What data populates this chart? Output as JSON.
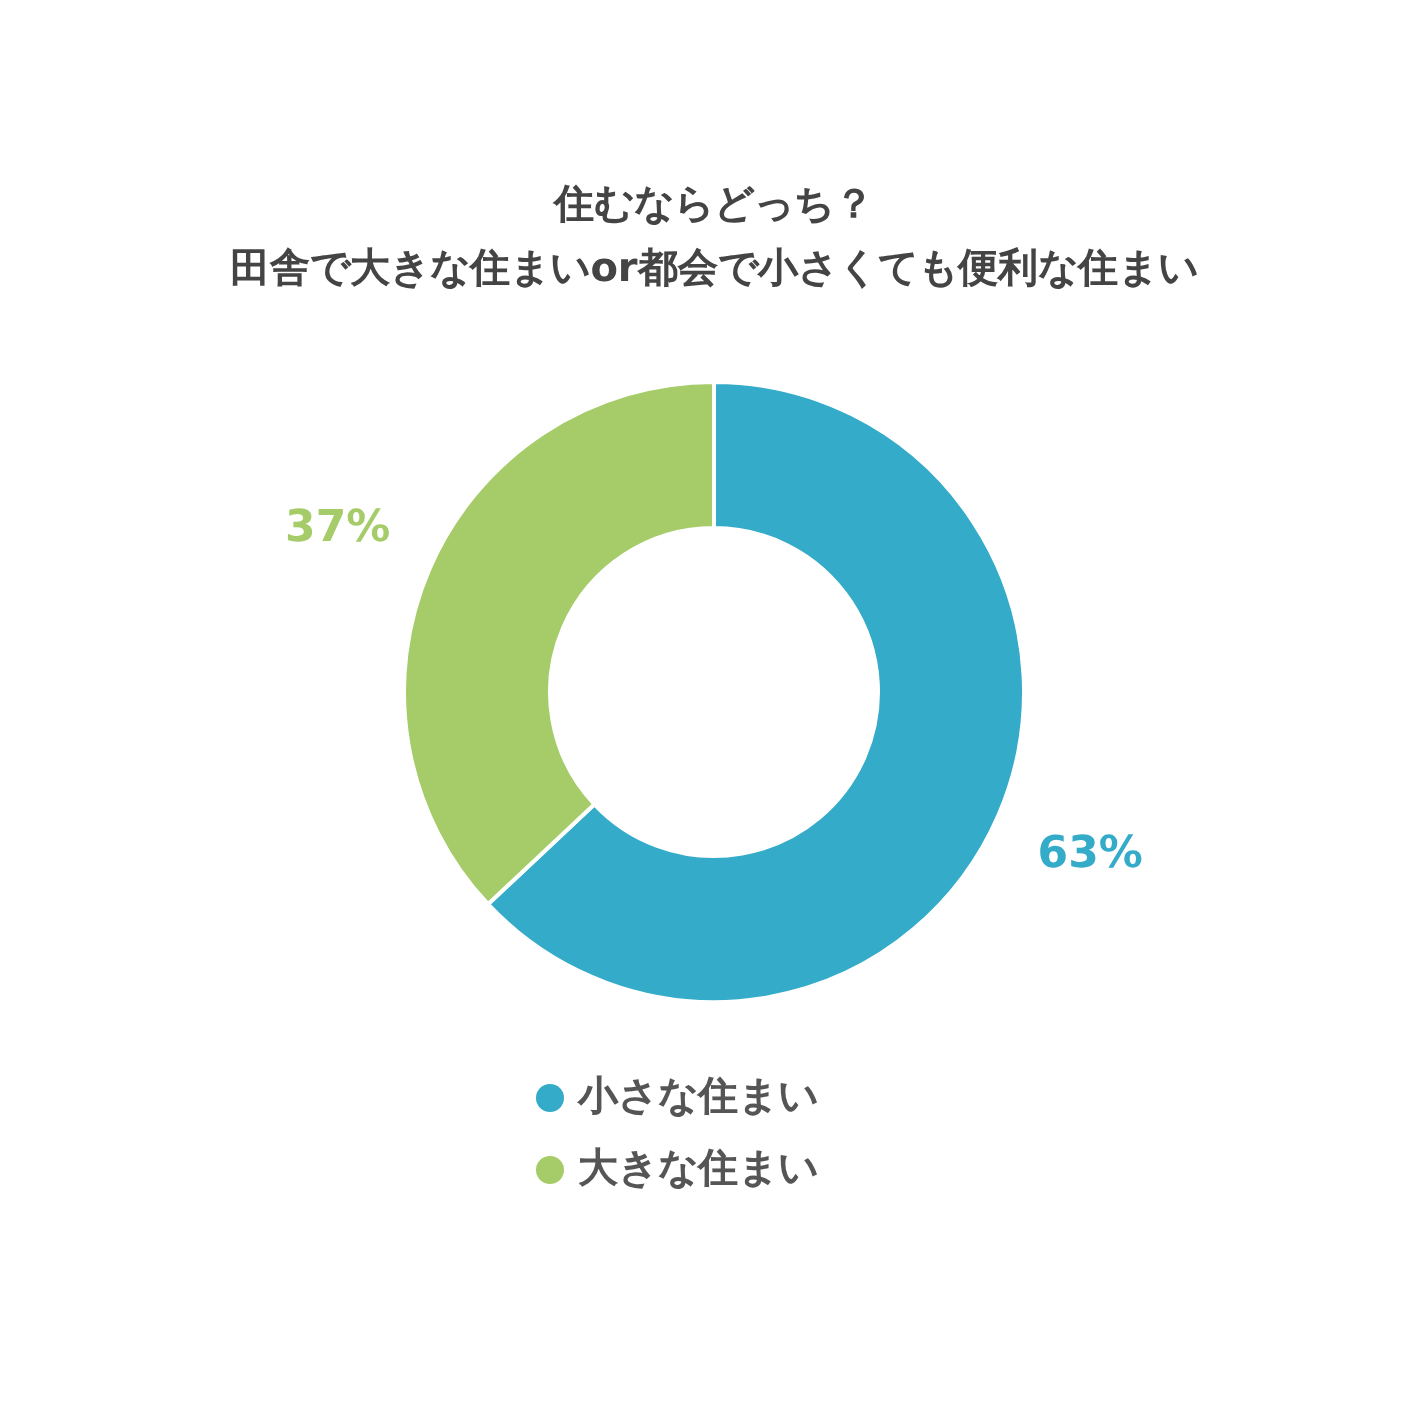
{
  "chart_data": {
    "type": "donut",
    "title": "住むならどっち？",
    "subtitle": "田舎で大きな住まいor都会で小さくても便利な住まい",
    "categories": [
      "小さな住まい",
      "大きな住まい"
    ],
    "values": [
      63,
      37
    ],
    "colors": [
      "#34abc8",
      "#a5cc69"
    ],
    "value_labels": [
      "63%",
      "37%"
    ],
    "legend": "bottom"
  }
}
